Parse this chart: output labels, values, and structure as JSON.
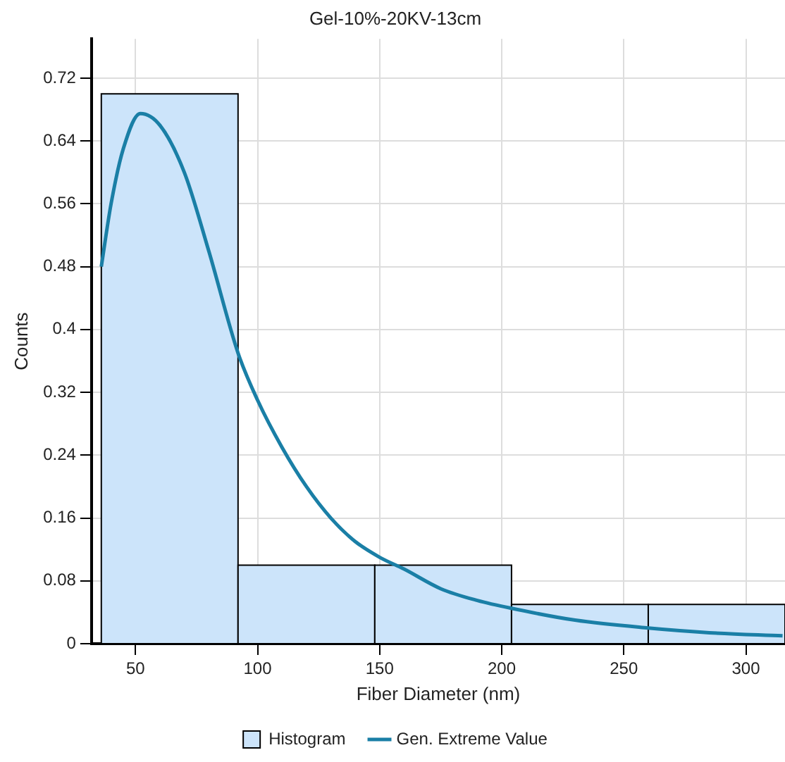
{
  "chart_data": {
    "type": "histogram",
    "title": "Gel-10%-20KV-13cm",
    "xlabel": "Fiber Diameter (nm)",
    "ylabel": "Counts",
    "bins": [
      36,
      92,
      148,
      204,
      260,
      316
    ],
    "series": [
      {
        "name": "Histogram",
        "color": "#cce4fa",
        "values": [
          0.7,
          0.1,
          0.1,
          0.05,
          0.05
        ]
      },
      {
        "name": "Gen. Extreme Value",
        "type": "line",
        "color": "#1a7fa6",
        "x": [
          36,
          40,
          45,
          52,
          60,
          70,
          80,
          92,
          100,
          110,
          120,
          130,
          140,
          150,
          160,
          175,
          190,
          204,
          230,
          260,
          285,
          315
        ],
        "values": [
          0.48,
          0.56,
          0.63,
          0.675,
          0.66,
          0.6,
          0.5,
          0.37,
          0.31,
          0.25,
          0.2,
          0.16,
          0.13,
          0.11,
          0.095,
          0.07,
          0.055,
          0.045,
          0.03,
          0.02,
          0.014,
          0.01
        ]
      }
    ],
    "xlim": [
      32,
      316
    ],
    "xticks": [
      50,
      100,
      150,
      200,
      250,
      300
    ],
    "ylim": [
      0,
      0.77
    ],
    "yticks": [
      0,
      0.08,
      0.16,
      0.24,
      0.32,
      0.4,
      0.48,
      0.56,
      0.64,
      0.72
    ],
    "grid": true,
    "legend": "bottom",
    "marker": "none",
    "line_style": "solid"
  }
}
